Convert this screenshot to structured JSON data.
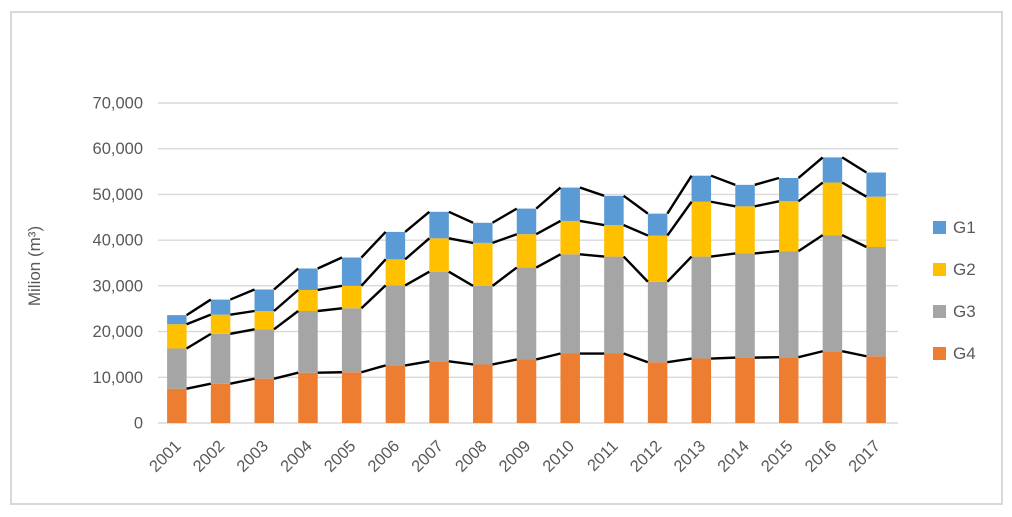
{
  "chart_data": {
    "type": "bar",
    "stacked": true,
    "title": "",
    "xlabel": "",
    "ylabel": "Milion (m³)",
    "categories": [
      "2001",
      "2002",
      "2003",
      "2004",
      "2005",
      "2006",
      "2007",
      "2008",
      "2009",
      "2010",
      "2011",
      "2012",
      "2013",
      "2014",
      "2015",
      "2016",
      "2017"
    ],
    "series": [
      {
        "name": "G1",
        "color": "#5B9BD5",
        "values": [
          2000,
          3300,
          4700,
          4700,
          6200,
          6000,
          5800,
          4400,
          5600,
          7300,
          6400,
          4800,
          5700,
          4700,
          5100,
          5500,
          5300
        ]
      },
      {
        "name": "G2",
        "color": "#FFC000",
        "values": [
          5300,
          4200,
          4000,
          4600,
          4900,
          5700,
          7300,
          9400,
          7300,
          7300,
          6900,
          10100,
          12000,
          10300,
          10900,
          11500,
          11000
        ]
      },
      {
        "name": "G3",
        "color": "#A5A5A5",
        "values": [
          8800,
          10900,
          10800,
          13500,
          14000,
          17500,
          19600,
          17200,
          20100,
          21700,
          21200,
          17600,
          22300,
          22800,
          23200,
          25400,
          23900
        ]
      },
      {
        "name": "G4",
        "color": "#ED7D31",
        "values": [
          7500,
          8600,
          9700,
          11000,
          11100,
          12600,
          13500,
          12800,
          13900,
          15200,
          15200,
          13300,
          14100,
          14300,
          14400,
          15700,
          14600
        ]
      }
    ],
    "stack_order_bottom_to_top": [
      "G4",
      "G3",
      "G2",
      "G1"
    ],
    "totals": [
      23600,
      27000,
      29200,
      33800,
      36200,
      41800,
      46200,
      43800,
      46900,
      51500,
      49700,
      45800,
      54100,
      52100,
      53600,
      58100,
      54800
    ],
    "ylim": [
      0,
      70000
    ],
    "y_tick_step": 10000,
    "y_tick_labels": [
      "0",
      "10,000",
      "20,000",
      "30,000",
      "40,000",
      "50,000",
      "60,000",
      "70,000"
    ],
    "grid": true,
    "gridline_color": "#D9D9D9",
    "axis_text_color": "#595959",
    "series_lines": true,
    "series_lines_color": "#000000",
    "legend_position": "right",
    "x_label_rotation_deg": -45
  }
}
